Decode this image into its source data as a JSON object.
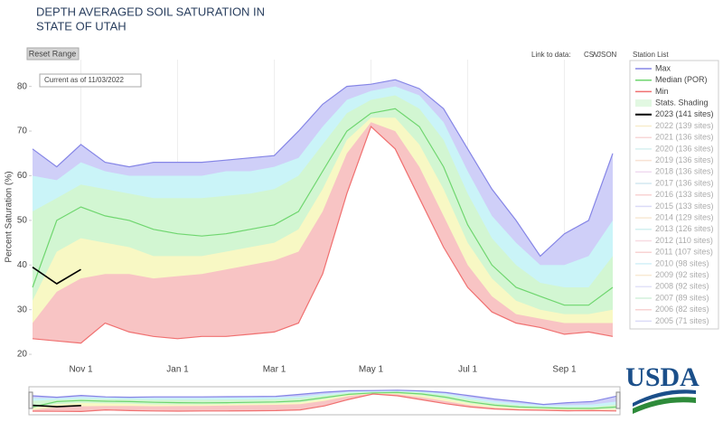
{
  "chart_data": {
    "type": "line",
    "title": [
      "DEPTH AVERAGED SOIL SATURATION IN",
      "STATE OF UTAH"
    ],
    "reset_button": "Reset Range",
    "current_note": "Current as of 11/03/2022",
    "link_label": "Link to data:",
    "links": [
      "CSV",
      "JSON"
    ],
    "station_list": "Station List",
    "logo_text": "USDA",
    "y_label": "Percent Saturation (%)",
    "categories": [
      null,
      null,
      "Nov 1",
      null,
      null,
      null,
      "Jan 1",
      null,
      null,
      null,
      "Mar 1",
      null,
      null,
      null,
      "May 1",
      null,
      null,
      null,
      "Jul 1",
      null,
      null,
      null,
      "Sep 1",
      null,
      null
    ],
    "ylim": [
      18.4,
      86
    ],
    "yticks": [
      20,
      30,
      40,
      50,
      60,
      70,
      80
    ],
    "grid": true,
    "series": [
      {
        "name": "Max",
        "color": "#8585e6",
        "fill": "#cfcff8",
        "values": [
          66,
          62,
          67,
          63,
          62,
          63,
          63,
          63,
          63.5,
          64,
          64.5,
          70,
          76,
          80,
          80.5,
          81.5,
          79.5,
          75,
          66,
          57,
          50,
          42,
          47,
          50,
          65
        ]
      },
      {
        "name": "Median (POR)",
        "color": "#6fd66f",
        "values": [
          35,
          50,
          53,
          51,
          50,
          48,
          47,
          46.5,
          47,
          48,
          49,
          52,
          61,
          70,
          74,
          75,
          71,
          62,
          49,
          40,
          35,
          33,
          31,
          31,
          35
        ]
      },
      {
        "name": "Min",
        "color": "#f07070",
        "fill": "#ffffff",
        "values": [
          23.5,
          23,
          22.5,
          27,
          25,
          24,
          23.5,
          24,
          24,
          24.5,
          25,
          27,
          38,
          56,
          71,
          66,
          55,
          44,
          35,
          29.5,
          27,
          26,
          24.5,
          25,
          24
        ]
      },
      {
        "name": "Stats. Shading",
        "color": "#e2f8e2",
        "bands": [
          {
            "color": "#caf4f8",
            "values": [
              60,
              59,
              63,
              61,
              60,
              60,
              60,
              60,
              61,
              61,
              62,
              64,
              71,
              77,
              79,
              80,
              78,
              72,
              61,
              51,
              45,
              40,
              40,
              42,
              50
            ]
          },
          {
            "color": "#d2f6d2",
            "values": [
              52,
              55,
              58,
              57,
              56,
              55,
              55,
              55,
              55.5,
              56,
              57,
              60,
              67,
              74,
              77,
              78,
              75,
              68,
              56,
              46,
              40,
              36,
              35,
              35,
              42
            ]
          },
          {
            "color": "#f8f8c4",
            "values": [
              32,
              43,
              46,
              45,
              44,
              42,
              42,
              42,
              43,
              44,
              45,
              48,
              57,
              68,
              73,
              73,
              67,
              57,
              45,
              37,
              32,
              30,
              29,
              29,
              30
            ]
          },
          {
            "color": "#f8c4c4",
            "values": [
              27,
              34,
              37,
              38,
              38,
              37,
              37.5,
              38,
              39,
              40,
              41,
              43,
              52,
              65,
              72,
              70,
              62,
              51,
              40,
              33,
              29,
              28,
              27,
              27,
              27
            ]
          }
        ]
      },
      {
        "name": "2023 (141 sites)",
        "color": "#000000",
        "values": [
          39.5,
          35.8,
          39,
          null,
          null,
          null,
          null,
          null,
          null,
          null,
          null,
          null,
          null,
          null,
          null,
          null,
          null,
          null,
          null,
          null,
          null,
          null,
          null,
          null,
          null
        ]
      },
      {
        "name": "2022 (139 sites)",
        "color": "#f0d890",
        "visible": false
      },
      {
        "name": "2021 (136 sites)",
        "color": "#f0a8a8",
        "visible": false
      },
      {
        "name": "2020 (136 sites)",
        "color": "#a8e0e0",
        "visible": false
      },
      {
        "name": "2019 (136 sites)",
        "color": "#f0c0a0",
        "visible": false
      },
      {
        "name": "2018 (136 sites)",
        "color": "#e0b0e0",
        "visible": false
      },
      {
        "name": "2017 (136 sites)",
        "color": "#a0d0e0",
        "visible": false
      },
      {
        "name": "2016 (133 sites)",
        "color": "#f0a0a0",
        "visible": false
      },
      {
        "name": "2015 (133 sites)",
        "color": "#b0b0f0",
        "visible": false
      },
      {
        "name": "2014 (129 sites)",
        "color": "#f0d0a0",
        "visible": false
      },
      {
        "name": "2013 (126 sites)",
        "color": "#a0e0e0",
        "visible": false
      },
      {
        "name": "2012 (110 sites)",
        "color": "#f0b0c0",
        "visible": false
      },
      {
        "name": "2011 (107 sites)",
        "color": "#f0a0a0",
        "visible": false
      },
      {
        "name": "2010 (98 sites)",
        "color": "#a0e0f0",
        "visible": false
      },
      {
        "name": "2009 (92 sites)",
        "color": "#f0d0a0",
        "visible": false
      },
      {
        "name": "2008 (92 sites)",
        "color": "#c0c0f0",
        "visible": false
      },
      {
        "name": "2007 (89 sites)",
        "color": "#a0e0b0",
        "visible": false
      },
      {
        "name": "2006 (82 sites)",
        "color": "#f0a0a0",
        "visible": false
      },
      {
        "name": "2005 (71 sites)",
        "color": "#b0b0f0",
        "visible": false
      }
    ]
  }
}
